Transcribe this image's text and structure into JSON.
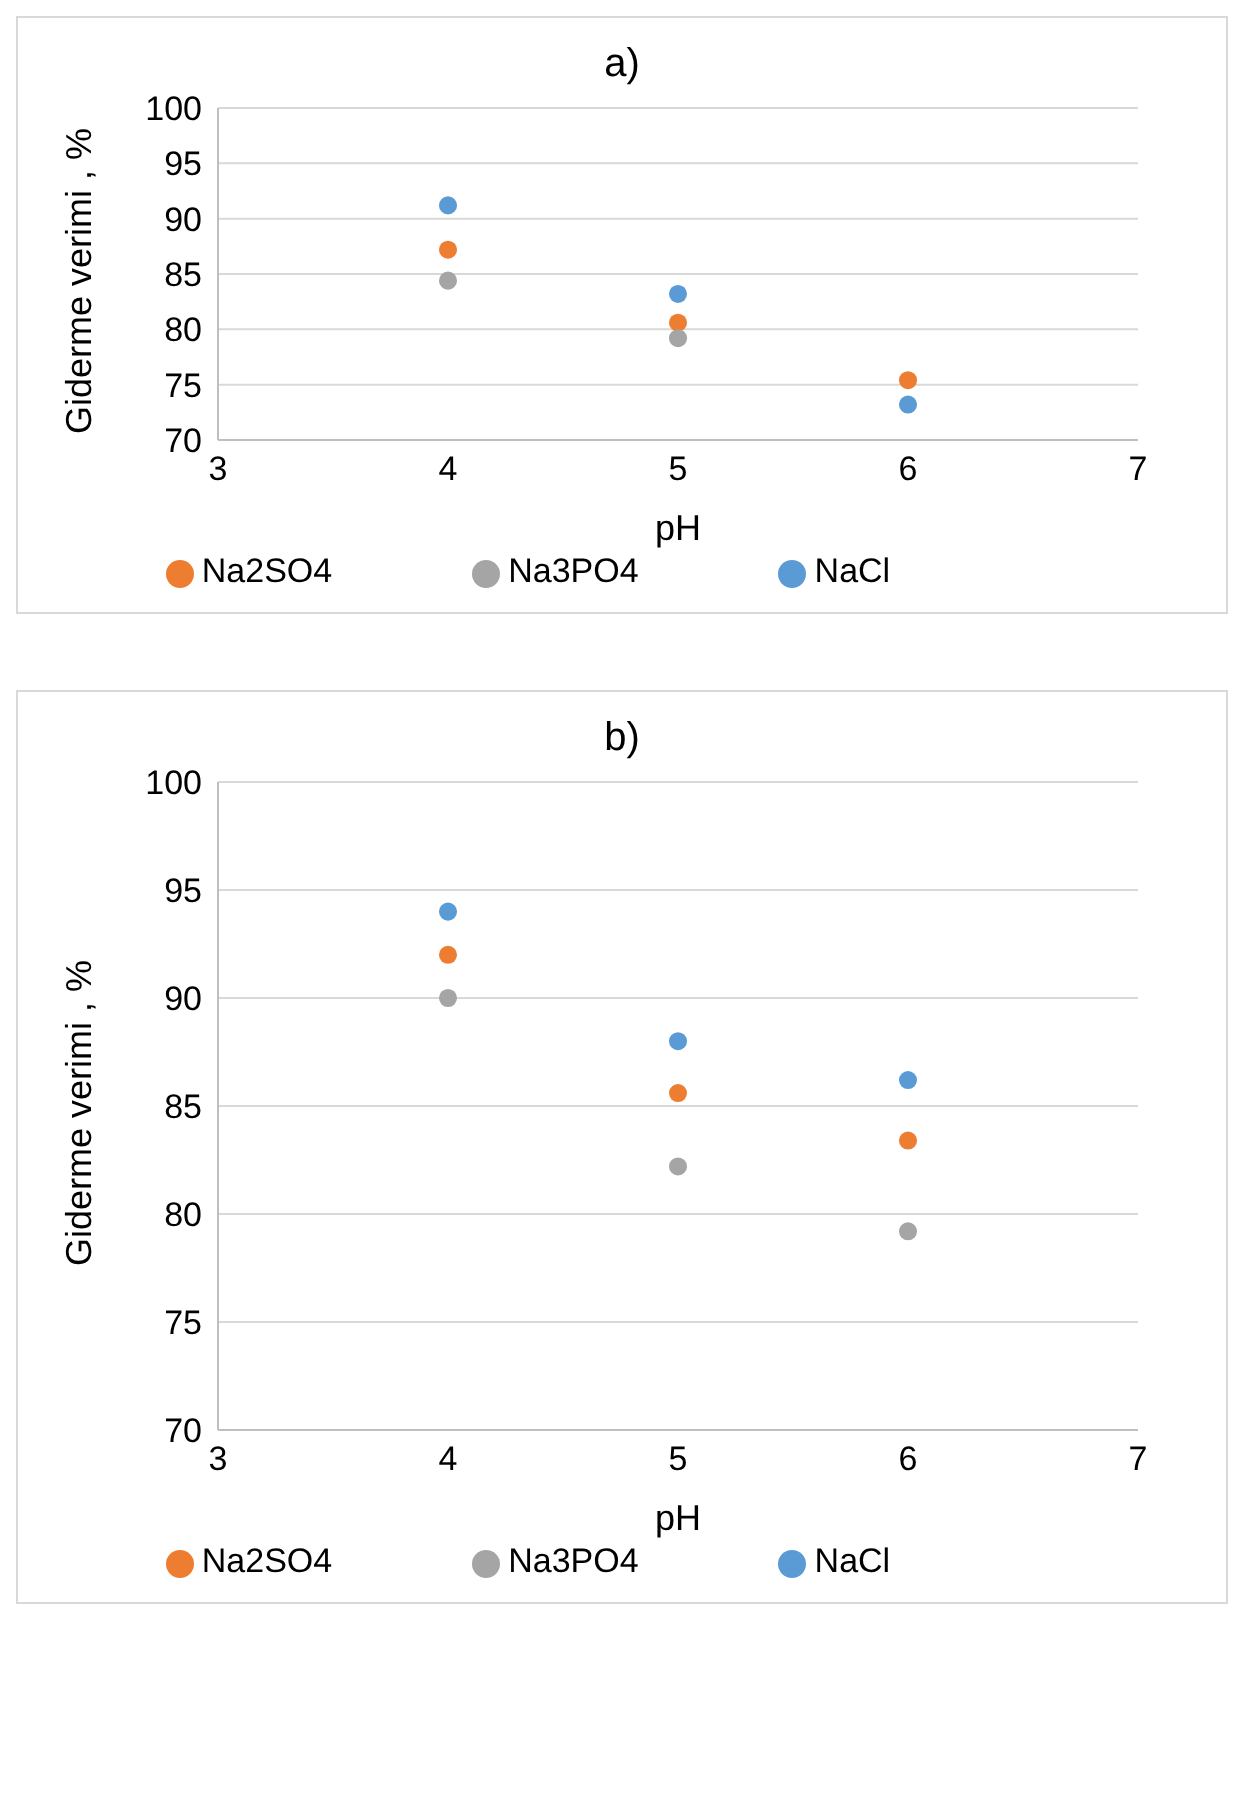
{
  "chart_data": [
    {
      "type": "scatter",
      "title": "a)",
      "xlabel": "pH",
      "ylabel": "Giderme verimi , %",
      "x": [
        4,
        5,
        6
      ],
      "xlim": [
        3,
        7
      ],
      "xticks": [
        3,
        4,
        5,
        6,
        7
      ],
      "ylim": [
        70,
        100
      ],
      "yticks": [
        70,
        75,
        80,
        85,
        90,
        95,
        100
      ],
      "grid": "y",
      "legend": "bottom",
      "marker": "circle",
      "series": [
        {
          "name": "NaCl",
          "color": "#5b9bd5",
          "values": [
            91.2,
            83.2,
            73.2
          ]
        },
        {
          "name": "Na2SO4",
          "color": "#ed7d31",
          "values": [
            87.2,
            80.6,
            75.4
          ]
        },
        {
          "name": "Na3PO4",
          "color": "#a5a5a5",
          "values": [
            84.4,
            79.2,
            null
          ]
        }
      ]
    },
    {
      "type": "scatter",
      "title": "b)",
      "xlabel": "pH",
      "ylabel": "Giderme verimi , %",
      "x": [
        4,
        5,
        6
      ],
      "xlim": [
        3,
        7
      ],
      "xticks": [
        3,
        4,
        5,
        6,
        7
      ],
      "ylim": [
        70,
        100
      ],
      "yticks": [
        70,
        75,
        80,
        85,
        90,
        95,
        100
      ],
      "grid": "y",
      "legend": "bottom",
      "marker": "circle",
      "series": [
        {
          "name": "NaCl",
          "color": "#5b9bd5",
          "values": [
            94,
            88,
            86.2
          ]
        },
        {
          "name": "Na2SO4",
          "color": "#ed7d31",
          "values": [
            92,
            85.6,
            83.4
          ]
        },
        {
          "name": "Na3PO4",
          "color": "#a5a5a5",
          "values": [
            90,
            82.2,
            79.2
          ]
        }
      ]
    }
  ]
}
